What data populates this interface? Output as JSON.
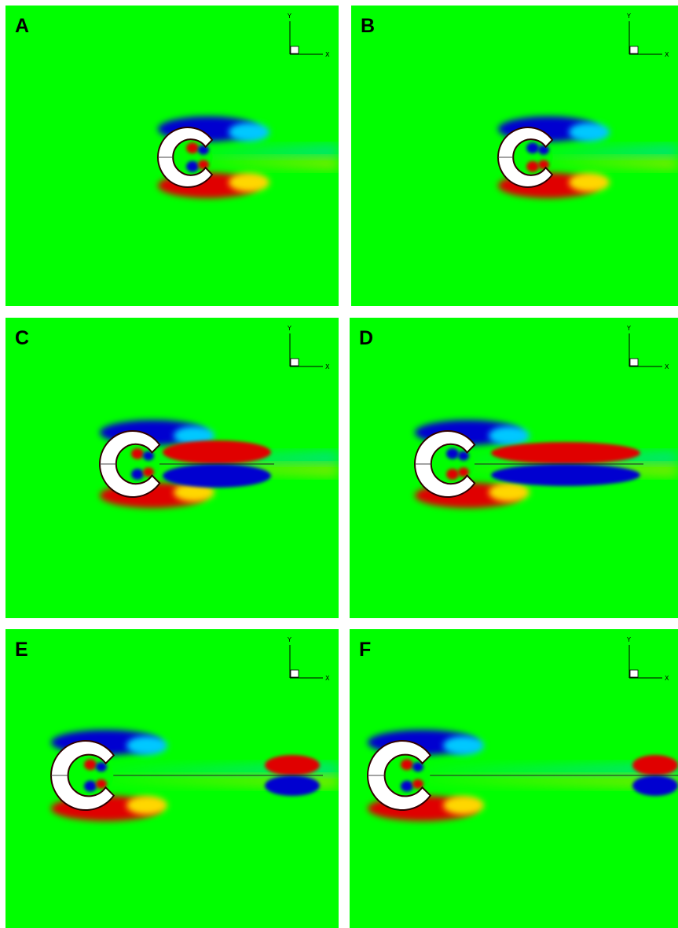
{
  "figure": {
    "panels": [
      {
        "label": "A"
      },
      {
        "label": "B"
      },
      {
        "label": "C"
      },
      {
        "label": "D"
      },
      {
        "label": "E"
      },
      {
        "label": "F"
      }
    ],
    "axis_labels": {
      "x": "X",
      "y": "Y"
    },
    "colors": {
      "background": "#00ff00",
      "positive_strong": "#e00000",
      "positive_weak": "#ffd700",
      "negative_strong": "#0000d0",
      "negative_weak": "#00c8ff",
      "body": "#ffffff"
    }
  }
}
